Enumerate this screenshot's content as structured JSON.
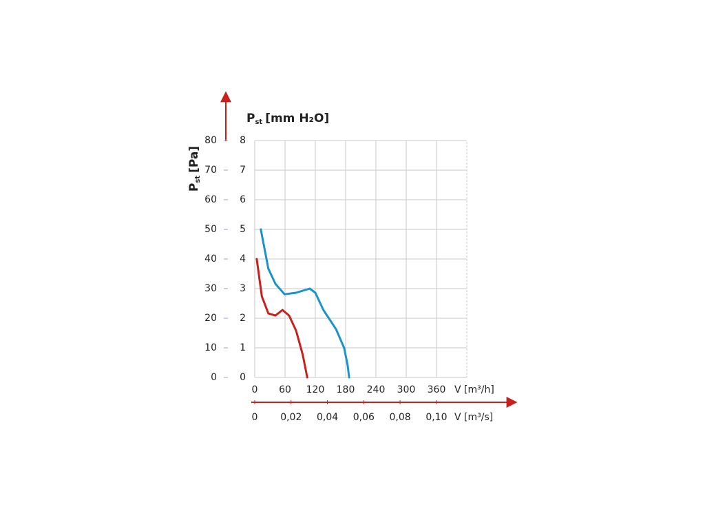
{
  "chart_data": {
    "type": "line",
    "y_label": {
      "symbol": "P",
      "subscript": "st",
      "unit": "[mm H₂O]"
    },
    "y2_label": {
      "symbol": "P",
      "subscript": "st",
      "unit": "[Pa]"
    },
    "x_label": "V [m³/h]",
    "x2_label": "V [m³/s]",
    "xlim": [
      0,
      420
    ],
    "xticks": [
      0,
      60,
      120,
      180,
      240,
      300,
      360
    ],
    "x2lim": [
      0,
      0.1167
    ],
    "x2ticks": [
      0,
      {
        "value": 0.02,
        "label": "0,02"
      },
      {
        "value": 0.04,
        "label": "0,04"
      },
      {
        "value": 0.06,
        "label": "0,06"
      },
      {
        "value": 0.08,
        "label": "0,08"
      },
      {
        "value": 0.1,
        "label": "0,10"
      }
    ],
    "ylim": [
      0,
      8
    ],
    "yticks": [
      0,
      1,
      2,
      3,
      4,
      5,
      6,
      7,
      8
    ],
    "y2lim": [
      0,
      80
    ],
    "y2ticks": [
      0,
      10,
      20,
      30,
      40,
      50,
      60,
      70,
      80
    ],
    "grid": true,
    "series": [
      {
        "color": "#1a93c8",
        "x": [
          12,
          27,
          41,
          59,
          82,
          109,
          120,
          136,
          161,
          177,
          184,
          187
        ],
        "values": [
          5.0,
          3.67,
          3.16,
          2.81,
          2.86,
          3.0,
          2.86,
          2.28,
          1.63,
          1.0,
          0.42,
          0
        ]
      },
      {
        "color": "#c8201e",
        "x": [
          4,
          14,
          27,
          41,
          55,
          68,
          82,
          95,
          104
        ],
        "values": [
          4.0,
          2.74,
          2.16,
          2.09,
          2.28,
          2.09,
          1.58,
          0.77,
          0
        ]
      }
    ]
  }
}
